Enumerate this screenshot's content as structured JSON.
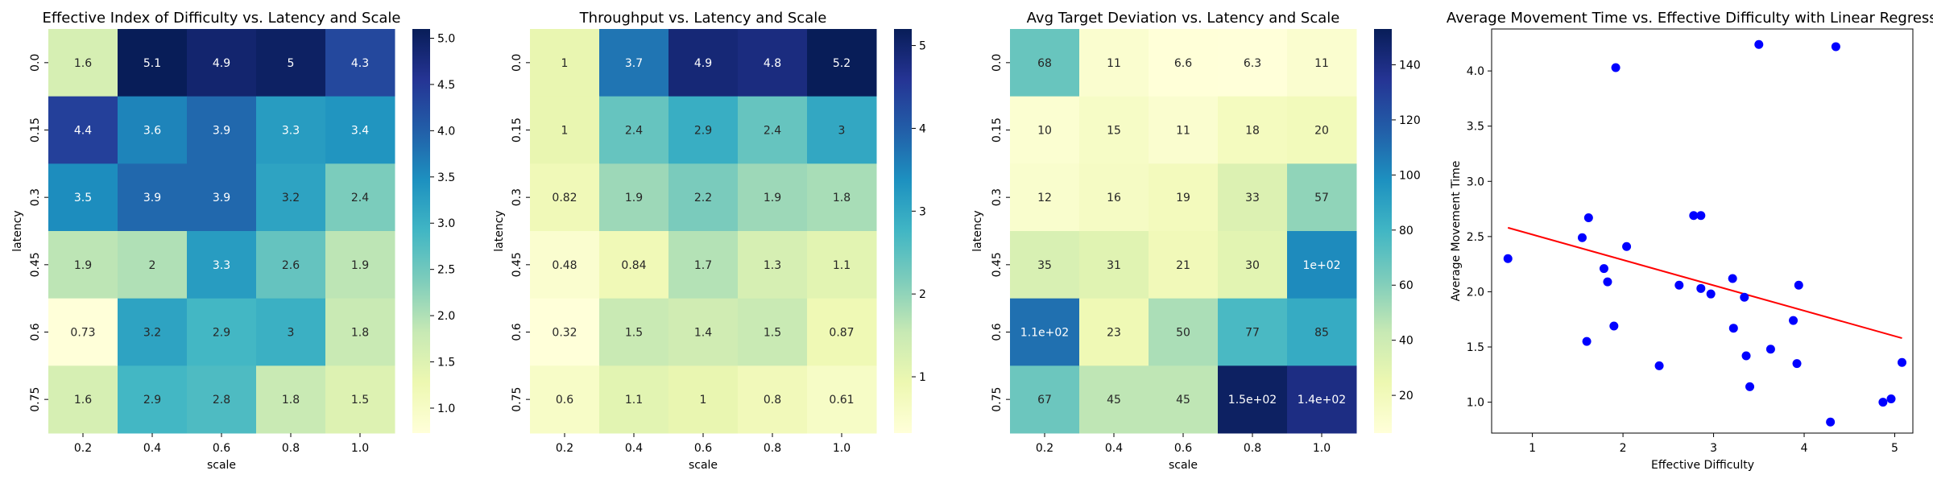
{
  "chart_data": [
    {
      "type": "heatmap",
      "title": "Effective Index of Difficulty vs. Latency and Scale",
      "xlabel": "scale",
      "ylabel": "latency",
      "x_categories": [
        "0.2",
        "0.4",
        "0.6",
        "0.8",
        "1.0"
      ],
      "y_categories": [
        "0.0",
        "0.15",
        "0.3",
        "0.45",
        "0.6",
        "0.75"
      ],
      "values": [
        [
          1.6,
          5.1,
          4.9,
          5.0,
          4.3
        ],
        [
          4.4,
          3.6,
          3.9,
          3.3,
          3.4
        ],
        [
          3.5,
          3.9,
          3.9,
          3.2,
          2.4
        ],
        [
          1.9,
          2.0,
          3.3,
          2.6,
          1.9
        ],
        [
          0.73,
          3.2,
          2.9,
          3.0,
          1.8
        ],
        [
          1.6,
          2.9,
          2.8,
          1.8,
          1.5
        ]
      ],
      "cell_labels": [
        [
          "1.6",
          "5.1",
          "4.9",
          "5",
          "4.3"
        ],
        [
          "4.4",
          "3.6",
          "3.9",
          "3.3",
          "3.4"
        ],
        [
          "3.5",
          "3.9",
          "3.9",
          "3.2",
          "2.4"
        ],
        [
          "1.9",
          "2",
          "3.3",
          "2.6",
          "1.9"
        ],
        [
          "0.73",
          "3.2",
          "2.9",
          "3",
          "1.8"
        ],
        [
          "1.6",
          "2.9",
          "2.8",
          "1.8",
          "1.5"
        ]
      ],
      "colormap": "YlGnBu",
      "colorbar_range": [
        0.73,
        5.1
      ],
      "colorbar_ticks": [
        "1.0",
        "1.5",
        "2.0",
        "2.5",
        "3.0",
        "3.5",
        "4.0",
        "4.5",
        "5.0"
      ],
      "colorbar_tick_values": [
        1.0,
        1.5,
        2.0,
        2.5,
        3.0,
        3.5,
        4.0,
        4.5,
        5.0
      ]
    },
    {
      "type": "heatmap",
      "title": "Throughput vs. Latency and Scale",
      "xlabel": "scale",
      "ylabel": "latency",
      "x_categories": [
        "0.2",
        "0.4",
        "0.6",
        "0.8",
        "1.0"
      ],
      "y_categories": [
        "0.0",
        "0.15",
        "0.3",
        "0.45",
        "0.6",
        "0.75"
      ],
      "values": [
        [
          1.0,
          3.7,
          4.9,
          4.8,
          5.2
        ],
        [
          1.0,
          2.4,
          2.9,
          2.4,
          3.0
        ],
        [
          0.82,
          1.9,
          2.2,
          1.9,
          1.8
        ],
        [
          0.48,
          0.84,
          1.7,
          1.3,
          1.1
        ],
        [
          0.32,
          1.5,
          1.4,
          1.5,
          0.87
        ],
        [
          0.6,
          1.1,
          1.0,
          0.8,
          0.61
        ]
      ],
      "cell_labels": [
        [
          "1",
          "3.7",
          "4.9",
          "4.8",
          "5.2"
        ],
        [
          "1",
          "2.4",
          "2.9",
          "2.4",
          "3"
        ],
        [
          "0.82",
          "1.9",
          "2.2",
          "1.9",
          "1.8"
        ],
        [
          "0.48",
          "0.84",
          "1.7",
          "1.3",
          "1.1"
        ],
        [
          "0.32",
          "1.5",
          "1.4",
          "1.5",
          "0.87"
        ],
        [
          "0.6",
          "1.1",
          "1",
          "0.8",
          "0.61"
        ]
      ],
      "colormap": "YlGnBu",
      "colorbar_range": [
        0.32,
        5.2
      ],
      "colorbar_ticks": [
        "1",
        "2",
        "3",
        "4",
        "5"
      ],
      "colorbar_tick_values": [
        1,
        2,
        3,
        4,
        5
      ]
    },
    {
      "type": "heatmap",
      "title": "Avg Target Deviation vs. Latency and Scale",
      "xlabel": "scale",
      "ylabel": "latency",
      "x_categories": [
        "0.2",
        "0.4",
        "0.6",
        "0.8",
        "1.0"
      ],
      "y_categories": [
        "0.0",
        "0.15",
        "0.3",
        "0.45",
        "0.6",
        "0.75"
      ],
      "values": [
        [
          68,
          11,
          6.6,
          6.3,
          11
        ],
        [
          10,
          15,
          11,
          18,
          20
        ],
        [
          12,
          16,
          19,
          33,
          57
        ],
        [
          35,
          31,
          21,
          30,
          100
        ],
        [
          110,
          23,
          50,
          77,
          85
        ],
        [
          67,
          45,
          45,
          150,
          140
        ]
      ],
      "cell_labels": [
        [
          "68",
          "11",
          "6.6",
          "6.3",
          "11"
        ],
        [
          "10",
          "15",
          "11",
          "18",
          "20"
        ],
        [
          "12",
          "16",
          "19",
          "33",
          "57"
        ],
        [
          "35",
          "31",
          "21",
          "30",
          "1e+02"
        ],
        [
          "1.1e+02",
          "23",
          "50",
          "77",
          "85"
        ],
        [
          "67",
          "45",
          "45",
          "1.5e+02",
          "1.4e+02"
        ]
      ],
      "colormap": "YlGnBu",
      "colorbar_range": [
        6.3,
        153
      ],
      "colorbar_ticks": [
        "20",
        "40",
        "60",
        "80",
        "100",
        "120",
        "140"
      ],
      "colorbar_tick_values": [
        20,
        40,
        60,
        80,
        100,
        120,
        140
      ]
    },
    {
      "type": "scatter",
      "title": "Average Movement Time vs. Effective Difficulty with Linear Regression",
      "xlabel": "Effective Difficulty",
      "ylabel": "Average Movement Time",
      "xlim": [
        0.55,
        5.2
      ],
      "ylim": [
        0.72,
        4.38
      ],
      "x_ticks": [
        1,
        2,
        3,
        4,
        5
      ],
      "y_ticks": [
        1.0,
        1.5,
        2.0,
        2.5,
        3.0,
        3.5,
        4.0
      ],
      "x_tick_labels": [
        "1",
        "2",
        "3",
        "4",
        "5"
      ],
      "y_tick_labels": [
        "1.0",
        "1.5",
        "2.0",
        "2.5",
        "3.0",
        "3.5",
        "4.0"
      ],
      "point_color": "#0000ff",
      "line_color": "#ff0000",
      "points": [
        {
          "x": 0.73,
          "y": 2.3
        },
        {
          "x": 1.55,
          "y": 2.49
        },
        {
          "x": 1.6,
          "y": 1.55
        },
        {
          "x": 1.62,
          "y": 2.67
        },
        {
          "x": 1.79,
          "y": 2.21
        },
        {
          "x": 1.83,
          "y": 2.09
        },
        {
          "x": 1.9,
          "y": 1.69
        },
        {
          "x": 1.92,
          "y": 4.03
        },
        {
          "x": 2.04,
          "y": 2.41
        },
        {
          "x": 2.4,
          "y": 1.33
        },
        {
          "x": 2.62,
          "y": 2.06
        },
        {
          "x": 2.78,
          "y": 2.69
        },
        {
          "x": 2.86,
          "y": 2.69
        },
        {
          "x": 2.86,
          "y": 2.03
        },
        {
          "x": 2.97,
          "y": 1.98
        },
        {
          "x": 3.21,
          "y": 2.12
        },
        {
          "x": 3.22,
          "y": 1.67
        },
        {
          "x": 3.34,
          "y": 1.95
        },
        {
          "x": 3.36,
          "y": 1.42
        },
        {
          "x": 3.4,
          "y": 1.14
        },
        {
          "x": 3.5,
          "y": 4.24
        },
        {
          "x": 3.63,
          "y": 1.48
        },
        {
          "x": 3.88,
          "y": 1.74
        },
        {
          "x": 3.92,
          "y": 1.35
        },
        {
          "x": 3.94,
          "y": 2.06
        },
        {
          "x": 4.29,
          "y": 0.82
        },
        {
          "x": 4.35,
          "y": 4.22
        },
        {
          "x": 4.87,
          "y": 1.0
        },
        {
          "x": 4.96,
          "y": 1.03
        },
        {
          "x": 5.08,
          "y": 1.36
        }
      ],
      "regression": {
        "x0": 0.73,
        "y0": 2.58,
        "x1": 5.08,
        "y1": 1.58
      }
    }
  ]
}
